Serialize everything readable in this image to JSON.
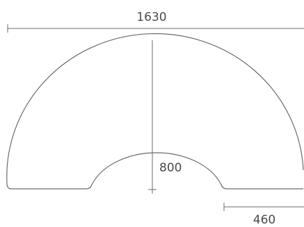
{
  "dimensions": {
    "overall_width": "1630",
    "center_height": "800",
    "band_width": "460"
  },
  "colors": {
    "line": "#6b6b6b",
    "text": "#4a4a4a",
    "background": "#ffffff"
  }
}
